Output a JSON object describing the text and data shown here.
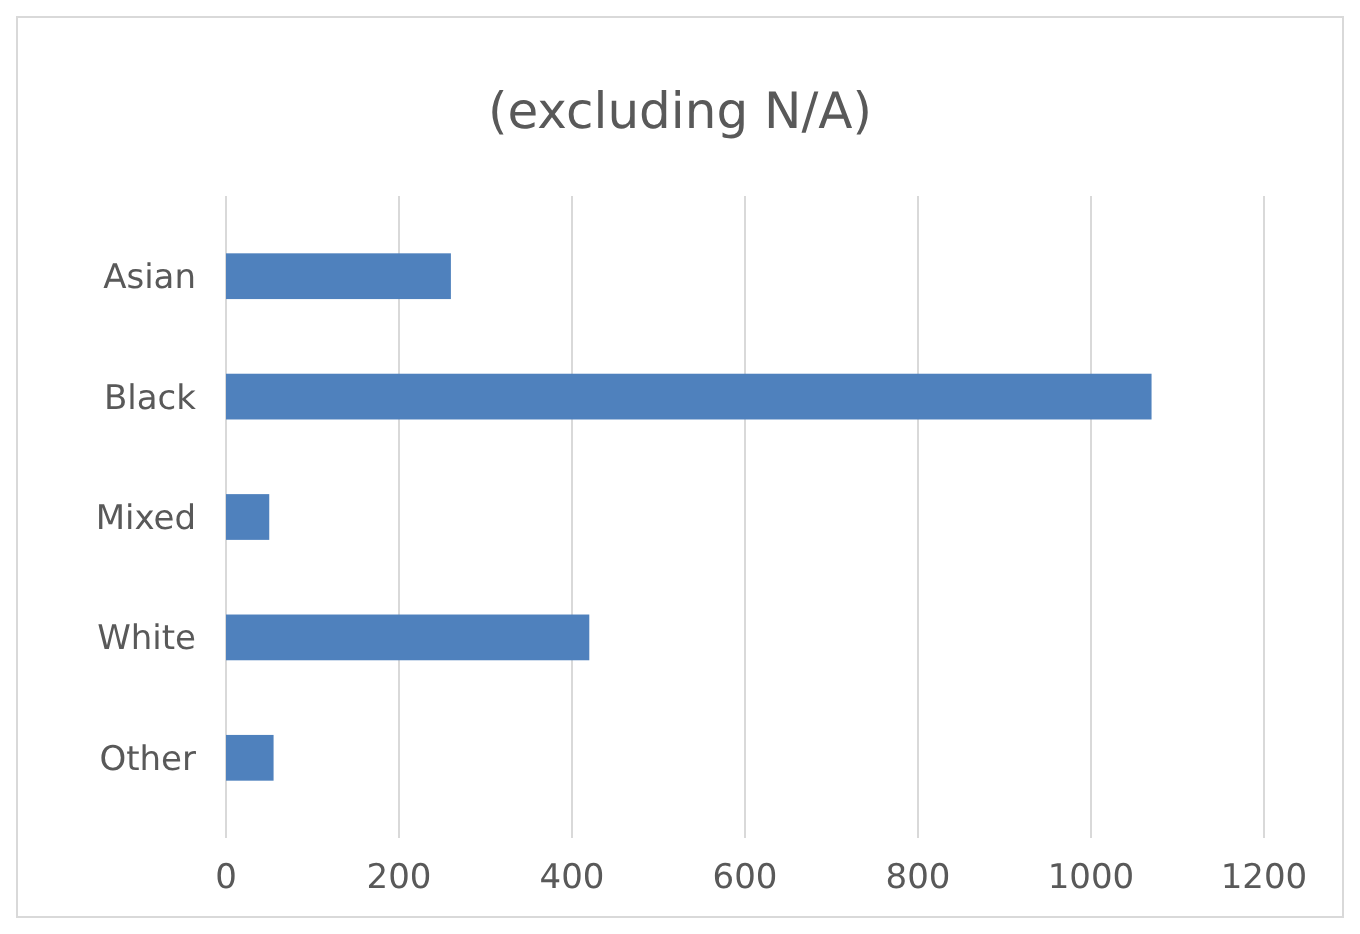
{
  "chart_data": {
    "type": "bar",
    "orientation": "horizontal",
    "title": "(excluding N/A)",
    "categories": [
      "Asian",
      "Black",
      "Mixed",
      "White",
      "Other"
    ],
    "values": [
      260,
      1070,
      50,
      420,
      55
    ],
    "color": "#4f81bd",
    "xlim": [
      0,
      1200
    ],
    "xticks": [
      0,
      200,
      400,
      600,
      800,
      1000,
      1200
    ],
    "grid": "x"
  }
}
